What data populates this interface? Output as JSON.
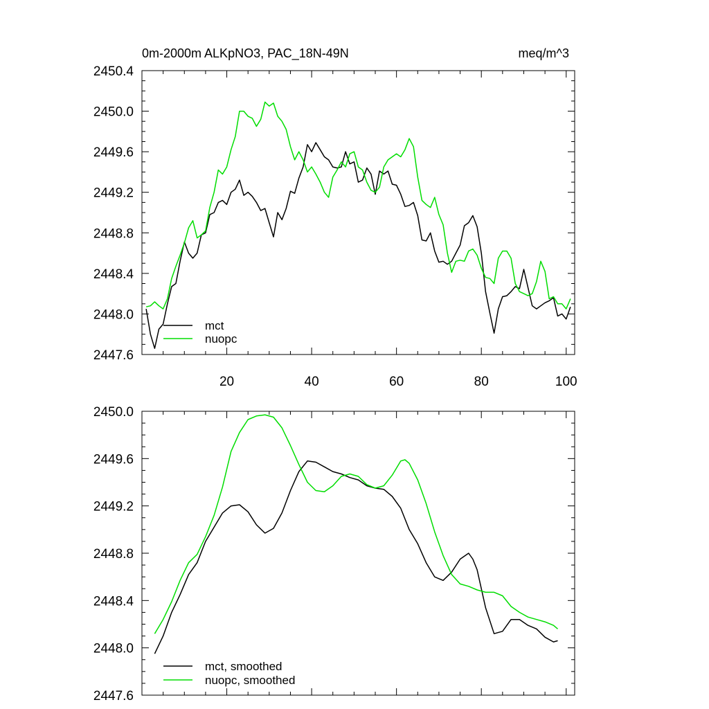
{
  "colors": {
    "mct": "#000000",
    "nuopc": "#00dd00",
    "frame": "#000000"
  },
  "chart_data": [
    {
      "type": "line",
      "title": "0m-2000m ALKpNO3, PAC_18N-49N",
      "units_label": "meq/m^3",
      "xlim": [
        0,
        102
      ],
      "ylim": [
        2447.6,
        2450.4
      ],
      "yticks": [
        "2447.6",
        "2448.0",
        "2448.4",
        "2448.8",
        "2449.2",
        "2449.6",
        "2450.0",
        "2450.4"
      ],
      "xticks": [
        "20",
        "40",
        "60",
        "80",
        "100"
      ],
      "legend": "bottom-left",
      "series": [
        {
          "name": "mct",
          "color": "#000000",
          "x": [
            1,
            2,
            3,
            4,
            5,
            6,
            7,
            8,
            9,
            10,
            11,
            12,
            13,
            14,
            15,
            16,
            17,
            18,
            19,
            20,
            21,
            22,
            23,
            24,
            25,
            26,
            27,
            28,
            29,
            30,
            31,
            32,
            33,
            34,
            35,
            36,
            37,
            38,
            39,
            40,
            41,
            42,
            43,
            44,
            45,
            46,
            47,
            48,
            49,
            50,
            51,
            52,
            53,
            54,
            55,
            56,
            57,
            58,
            59,
            60,
            61,
            62,
            63,
            64,
            65,
            66,
            67,
            68,
            69,
            70,
            71,
            72,
            73,
            74,
            75,
            76,
            77,
            78,
            79,
            80,
            81,
            82,
            83,
            84,
            85,
            86,
            87,
            88,
            89,
            90,
            91,
            92,
            93,
            94,
            95,
            96,
            97,
            98,
            99,
            100,
            101
          ],
          "values": [
            2448.05,
            2447.8,
            2447.66,
            2447.85,
            2447.9,
            2448.1,
            2448.27,
            2448.3,
            2448.52,
            2448.71,
            2448.6,
            2448.55,
            2448.6,
            2448.78,
            2448.8,
            2448.98,
            2449.0,
            2449.1,
            2449.12,
            2449.08,
            2449.2,
            2449.23,
            2449.32,
            2449.17,
            2449.2,
            2449.16,
            2449.1,
            2449.02,
            2449.04,
            2448.9,
            2448.76,
            2449.0,
            2448.93,
            2449.04,
            2449.21,
            2449.19,
            2449.34,
            2449.45,
            2449.67,
            2449.6,
            2449.69,
            2449.62,
            2449.55,
            2449.52,
            2449.45,
            2449.44,
            2449.45,
            2449.6,
            2449.48,
            2449.5,
            2449.3,
            2449.32,
            2449.44,
            2449.38,
            2449.18,
            2449.41,
            2449.38,
            2449.41,
            2449.28,
            2449.27,
            2449.18,
            2449.06,
            2449.07,
            2449.1,
            2448.97,
            2448.73,
            2448.72,
            2448.8,
            2448.62,
            2448.51,
            2448.52,
            2448.49,
            2448.52,
            2448.6,
            2448.68,
            2448.87,
            2448.9,
            2448.97,
            2448.86,
            2448.6,
            2448.22,
            2448.01,
            2447.81,
            2448.05,
            2448.17,
            2448.18,
            2448.22,
            2448.27,
            2448.25,
            2448.44,
            2448.26,
            2448.08,
            2448.05,
            2448.08,
            2448.11,
            2448.13,
            2448.16,
            2447.98,
            2448.0,
            2447.95,
            2448.07
          ]
        },
        {
          "name": "nuopc",
          "color": "#00dd00",
          "x": [
            1,
            2,
            3,
            4,
            5,
            6,
            7,
            8,
            9,
            10,
            11,
            12,
            13,
            14,
            15,
            16,
            17,
            18,
            19,
            20,
            21,
            22,
            23,
            24,
            25,
            26,
            27,
            28,
            29,
            30,
            31,
            32,
            33,
            34,
            35,
            36,
            37,
            38,
            39,
            40,
            41,
            42,
            43,
            44,
            45,
            46,
            47,
            48,
            49,
            50,
            51,
            52,
            53,
            54,
            55,
            56,
            57,
            58,
            59,
            60,
            61,
            62,
            63,
            64,
            65,
            66,
            67,
            68,
            69,
            70,
            71,
            72,
            73,
            74,
            75,
            76,
            77,
            78,
            79,
            80,
            81,
            82,
            83,
            84,
            85,
            86,
            87,
            88,
            89,
            90,
            91,
            92,
            93,
            94,
            95,
            96,
            97,
            98,
            99,
            100,
            101
          ],
          "values": [
            2448.07,
            2448.08,
            2448.12,
            2448.08,
            2448.05,
            2448.15,
            2448.35,
            2448.47,
            2448.58,
            2448.7,
            2448.85,
            2448.92,
            2448.75,
            2448.78,
            2448.82,
            2449.05,
            2449.2,
            2449.42,
            2449.38,
            2449.45,
            2449.62,
            2449.75,
            2450.0,
            2450.0,
            2449.95,
            2449.93,
            2449.85,
            2449.92,
            2450.09,
            2450.05,
            2450.08,
            2449.95,
            2449.9,
            2449.82,
            2449.65,
            2449.52,
            2449.6,
            2449.52,
            2449.4,
            2449.45,
            2449.38,
            2449.3,
            2449.2,
            2449.15,
            2449.35,
            2449.42,
            2449.5,
            2449.45,
            2449.58,
            2449.6,
            2449.45,
            2449.42,
            2449.3,
            2449.22,
            2449.2,
            2449.25,
            2449.45,
            2449.52,
            2449.55,
            2449.58,
            2449.55,
            2449.62,
            2449.73,
            2449.65,
            2449.35,
            2449.12,
            2449.08,
            2449.05,
            2449.15,
            2448.98,
            2448.88,
            2448.6,
            2448.41,
            2448.52,
            2448.53,
            2448.52,
            2448.62,
            2448.64,
            2448.58,
            2448.45,
            2448.36,
            2448.35,
            2448.3,
            2448.55,
            2448.62,
            2448.62,
            2448.55,
            2448.3,
            2448.22,
            2448.2,
            2448.18,
            2448.2,
            2448.32,
            2448.52,
            2448.42,
            2448.15,
            2448.17,
            2448.1,
            2448.1,
            2448.05,
            2448.15
          ]
        }
      ]
    },
    {
      "type": "line",
      "xlim": [
        0,
        102
      ],
      "ylim": [
        2447.6,
        2450.0
      ],
      "yticks": [
        "2447.6",
        "2448.0",
        "2448.4",
        "2448.8",
        "2449.2",
        "2449.6",
        "2450.0"
      ],
      "legend": "bottom-left",
      "series": [
        {
          "name": "mct, smoothed",
          "color": "#000000",
          "x": [
            3,
            5,
            7,
            9,
            11,
            13,
            15,
            17,
            19,
            21,
            23,
            25,
            27,
            29,
            31,
            33,
            35,
            37,
            39,
            41,
            43,
            45,
            47,
            49,
            51,
            53,
            55,
            57,
            59,
            61,
            63,
            65,
            67,
            69,
            71,
            73,
            75,
            77,
            78,
            79,
            81,
            83,
            85,
            87,
            89,
            91,
            93,
            95,
            97,
            98
          ],
          "values": [
            2447.95,
            2448.1,
            2448.3,
            2448.45,
            2448.62,
            2448.72,
            2448.9,
            2449.02,
            2449.14,
            2449.2,
            2449.21,
            2449.15,
            2449.04,
            2448.97,
            2449.01,
            2449.14,
            2449.33,
            2449.49,
            2449.58,
            2449.57,
            2449.53,
            2449.49,
            2449.47,
            2449.44,
            2449.42,
            2449.37,
            2449.35,
            2449.34,
            2449.28,
            2449.18,
            2449.0,
            2448.88,
            2448.72,
            2448.6,
            2448.57,
            2448.64,
            2448.75,
            2448.8,
            2448.75,
            2448.66,
            2448.34,
            2448.12,
            2448.14,
            2448.24,
            2448.24,
            2448.19,
            2448.16,
            2448.09,
            2448.05,
            2448.06
          ]
        },
        {
          "name": "nuopc, smoothed",
          "color": "#00dd00",
          "x": [
            3,
            5,
            7,
            9,
            11,
            13,
            15,
            17,
            19,
            21,
            23,
            25,
            27,
            29,
            31,
            33,
            35,
            37,
            39,
            41,
            43,
            45,
            47,
            49,
            51,
            53,
            55,
            57,
            59,
            61,
            62,
            63,
            65,
            67,
            69,
            71,
            73,
            75,
            77,
            79,
            81,
            83,
            85,
            87,
            89,
            91,
            93,
            95,
            97,
            98
          ],
          "values": [
            2448.12,
            2448.24,
            2448.39,
            2448.57,
            2448.72,
            2448.79,
            2448.94,
            2449.12,
            2449.36,
            2449.66,
            2449.82,
            2449.93,
            2449.96,
            2449.97,
            2449.95,
            2449.86,
            2449.71,
            2449.55,
            2449.4,
            2449.33,
            2449.32,
            2449.37,
            2449.45,
            2449.47,
            2449.45,
            2449.38,
            2449.35,
            2449.37,
            2449.46,
            2449.58,
            2449.59,
            2449.56,
            2449.42,
            2449.22,
            2448.98,
            2448.78,
            2448.62,
            2448.54,
            2448.52,
            2448.49,
            2448.47,
            2448.47,
            2448.44,
            2448.35,
            2448.3,
            2448.26,
            2448.24,
            2448.22,
            2448.19,
            2448.16
          ]
        }
      ]
    }
  ]
}
